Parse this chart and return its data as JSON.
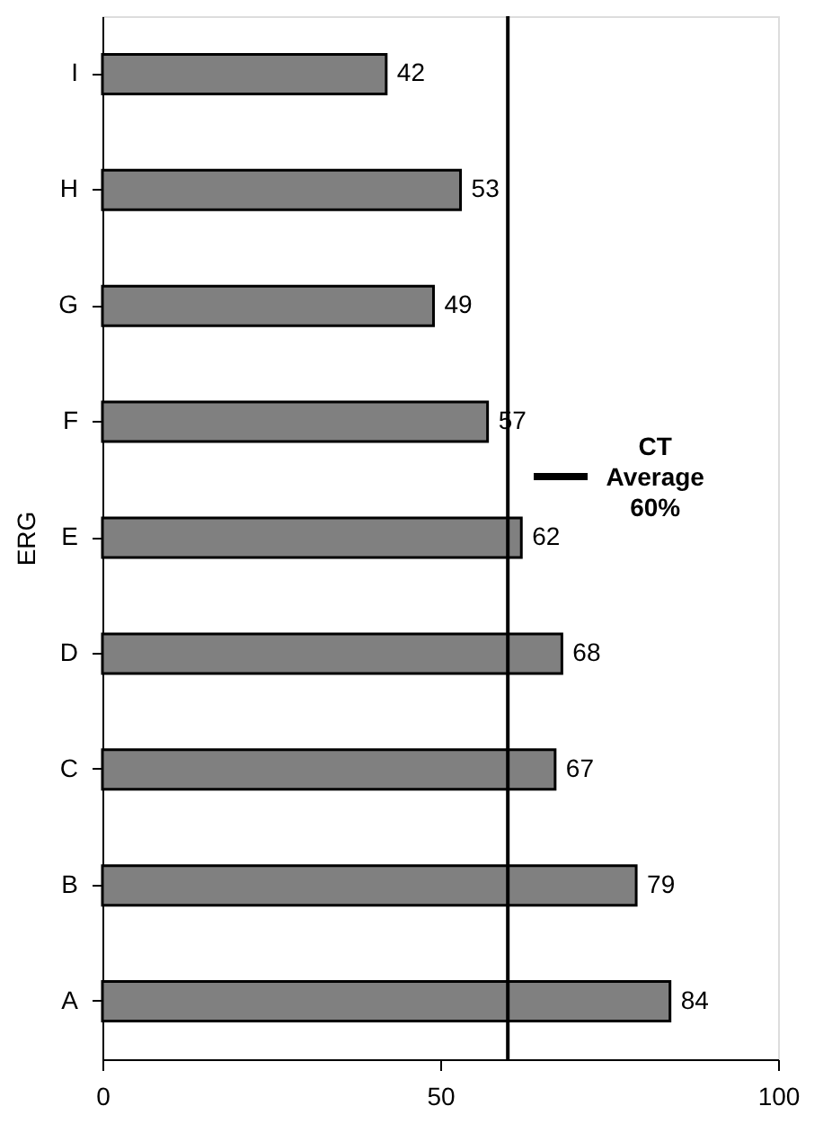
{
  "chart_data": {
    "type": "bar",
    "orientation": "horizontal",
    "ylabel": "ERG",
    "categories": [
      "I",
      "H",
      "G",
      "F",
      "E",
      "D",
      "C",
      "B",
      "A"
    ],
    "values": [
      42,
      53,
      49,
      57,
      62,
      68,
      67,
      79,
      84
    ],
    "color": "#808080",
    "xlim": [
      0,
      100
    ],
    "xticks": [
      0,
      50,
      100
    ],
    "grid": false,
    "data_labels": true,
    "ref_lines": [
      {
        "axis": "x",
        "value": 60,
        "label": "CT Average 60%",
        "color": "#000000"
      }
    ]
  }
}
